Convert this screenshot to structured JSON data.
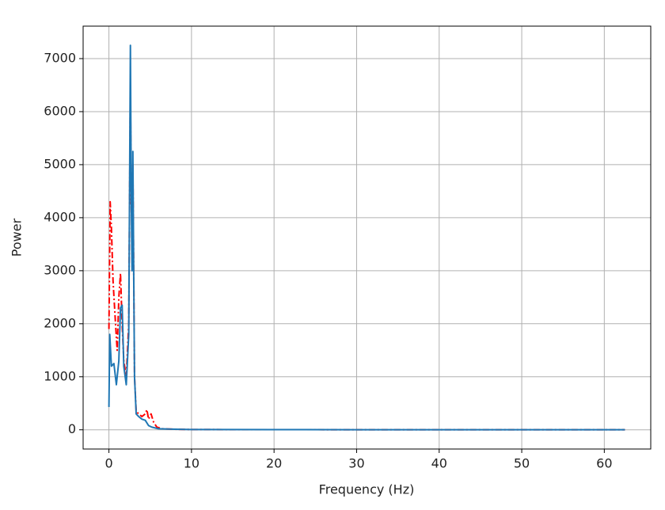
{
  "chart_data": {
    "type": "line",
    "xlabel": "Frequency (Hz)",
    "ylabel": "Power",
    "xlim": [
      -3.125,
      65.625
    ],
    "xticks": [
      0,
      10,
      20,
      30,
      40,
      50,
      60
    ],
    "ylim": [
      -362.5,
      7612.5
    ],
    "yticks": [
      0,
      1000,
      2000,
      3000,
      4000,
      5000,
      6000,
      7000
    ],
    "grid": true,
    "series": [
      {
        "color": "#ff0000",
        "linestyle": "dashdot",
        "x": [
          0,
          0.15,
          0.3,
          0.5,
          0.8,
          1.0,
          1.2,
          1.4,
          1.6,
          1.8,
          2.1,
          2.4,
          2.6,
          2.7,
          2.8,
          2.9,
          3.0,
          3.1,
          3.3,
          3.6,
          4.0,
          4.4,
          4.6,
          4.8,
          5.1,
          5.4,
          5.8,
          6.5,
          8,
          10,
          20,
          30,
          40,
          50,
          62.5
        ],
        "values": [
          1900,
          4300,
          3800,
          2800,
          2000,
          1500,
          2500,
          2950,
          2000,
          1300,
          1000,
          2000,
          6500,
          4200,
          4200,
          5000,
          3000,
          1000,
          350,
          300,
          250,
          300,
          380,
          200,
          300,
          150,
          50,
          20,
          10,
          5,
          3,
          2,
          2,
          1,
          1
        ]
      },
      {
        "color": "#1f77b4",
        "linestyle": "solid",
        "x": [
          0,
          0.1,
          0.3,
          0.6,
          0.9,
          1.2,
          1.4,
          1.6,
          1.8,
          2.1,
          2.4,
          2.6,
          2.7,
          2.8,
          2.9,
          3.0,
          3.1,
          3.3,
          3.6,
          4.0,
          4.4,
          4.8,
          5.2,
          6,
          8,
          10,
          20,
          30,
          40,
          50,
          62.5
        ],
        "values": [
          430,
          1800,
          1200,
          1250,
          850,
          1300,
          2300,
          2350,
          1200,
          850,
          1800,
          7250,
          4500,
          3000,
          5250,
          3000,
          1000,
          300,
          250,
          200,
          180,
          80,
          50,
          20,
          10,
          5,
          3,
          2,
          2,
          1,
          1
        ]
      }
    ]
  }
}
